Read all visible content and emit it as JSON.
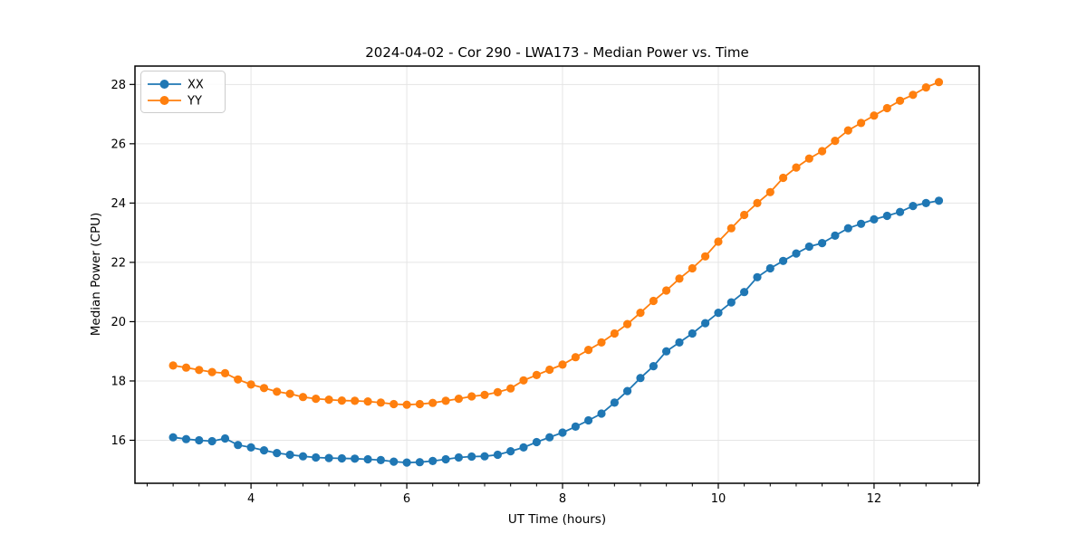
{
  "figure": {
    "background": "#ffffff",
    "frame_color": "#000000",
    "grid_color": "#e5e5e5"
  },
  "legend": {
    "items": [
      {
        "label": "XX",
        "color": "#1f77b4"
      },
      {
        "label": "YY",
        "color": "#ff7f0e"
      }
    ]
  },
  "chart_data": {
    "type": "line",
    "title": "2024-04-02 - Cor 290 - LWA173 - Median Power vs. Time",
    "xlabel": "UT Time (hours)",
    "ylabel": "Median Power (CPU)",
    "grid": true,
    "legend_position": "upper-left",
    "marker": "o",
    "xlim": [
      2.51,
      13.35
    ],
    "ylim": [
      14.55,
      28.62
    ],
    "xticks": [
      4,
      6,
      8,
      10,
      12
    ],
    "yticks": [
      16,
      18,
      20,
      22,
      24,
      26,
      28
    ],
    "x_minor_step": 0.33333,
    "x": [
      3.0,
      3.167,
      3.333,
      3.5,
      3.667,
      3.833,
      4.0,
      4.167,
      4.333,
      4.5,
      4.667,
      4.833,
      5.0,
      5.167,
      5.333,
      5.5,
      5.667,
      5.833,
      6.0,
      6.167,
      6.333,
      6.5,
      6.667,
      6.833,
      7.0,
      7.167,
      7.333,
      7.5,
      7.667,
      7.833,
      8.0,
      8.167,
      8.333,
      8.5,
      8.667,
      8.833,
      9.0,
      9.167,
      9.333,
      9.5,
      9.667,
      9.833,
      10.0,
      10.167,
      10.333,
      10.5,
      10.667,
      10.833,
      11.0,
      11.167,
      11.333,
      11.5,
      11.667,
      11.833,
      12.0,
      12.167,
      12.333,
      12.5,
      12.667,
      12.833
    ],
    "series": [
      {
        "name": "XX",
        "color": "#1f77b4",
        "values": [
          16.1,
          16.04,
          16.0,
          15.97,
          16.06,
          15.84,
          15.76,
          15.66,
          15.57,
          15.51,
          15.46,
          15.42,
          15.4,
          15.39,
          15.38,
          15.36,
          15.33,
          15.28,
          15.25,
          15.26,
          15.3,
          15.36,
          15.42,
          15.45,
          15.46,
          15.51,
          15.63,
          15.76,
          15.94,
          16.1,
          16.26,
          16.46,
          16.67,
          16.9,
          17.27,
          17.66,
          18.1,
          18.5,
          19.0,
          19.3,
          19.6,
          19.95,
          20.3,
          20.65,
          21.0,
          21.5,
          21.8,
          22.05,
          22.3,
          22.53,
          22.65,
          22.9,
          23.15,
          23.3,
          23.45,
          23.57,
          23.7,
          23.9,
          24.0,
          24.08
        ]
      },
      {
        "name": "YY",
        "color": "#ff7f0e",
        "values": [
          18.52,
          18.45,
          18.37,
          18.3,
          18.26,
          18.05,
          17.88,
          17.76,
          17.64,
          17.57,
          17.46,
          17.4,
          17.37,
          17.34,
          17.33,
          17.31,
          17.27,
          17.22,
          17.2,
          17.22,
          17.26,
          17.33,
          17.4,
          17.48,
          17.53,
          17.62,
          17.75,
          18.02,
          18.2,
          18.38,
          18.55,
          18.8,
          19.05,
          19.3,
          19.6,
          19.92,
          20.3,
          20.7,
          21.05,
          21.45,
          21.8,
          22.2,
          22.7,
          23.15,
          23.6,
          24.0,
          24.37,
          24.85,
          25.2,
          25.5,
          25.75,
          26.1,
          26.45,
          26.7,
          26.95,
          27.2,
          27.45,
          27.65,
          27.9,
          28.08
        ]
      }
    ]
  }
}
